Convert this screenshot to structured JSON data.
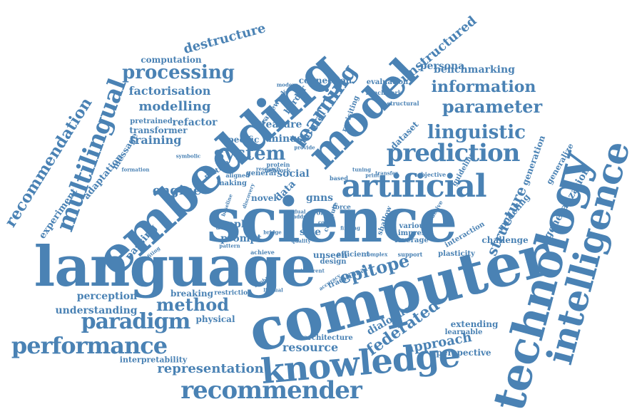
{
  "colors": {
    "word": "#4a82b4",
    "background": "#ffffff"
  },
  "words": [
    {
      "id": "science",
      "text": "science"
    },
    {
      "id": "computer",
      "text": "computer"
    },
    {
      "id": "language",
      "text": "language"
    },
    {
      "id": "embedding",
      "text": "embedding"
    },
    {
      "id": "technology",
      "text": "technology"
    },
    {
      "id": "intelligence",
      "text": "intelligence"
    },
    {
      "id": "model",
      "text": "model"
    },
    {
      "id": "knowledge",
      "text": "knowledge"
    },
    {
      "id": "artificial",
      "text": "artificial"
    },
    {
      "id": "prediction",
      "text": "prediction"
    },
    {
      "id": "multilingual",
      "text": "multilingual"
    },
    {
      "id": "recommender",
      "text": "recommender"
    },
    {
      "id": "performance",
      "text": "performance"
    },
    {
      "id": "paradigm",
      "text": "paradigm"
    },
    {
      "id": "processing",
      "text": "processing"
    },
    {
      "id": "linguistic",
      "text": "linguistic"
    },
    {
      "id": "parameter",
      "text": "parameter"
    },
    {
      "id": "system",
      "text": "system"
    },
    {
      "id": "learning",
      "text": "learning"
    },
    {
      "id": "information",
      "text": "information"
    },
    {
      "id": "method",
      "text": "method"
    },
    {
      "id": "epitope",
      "text": "epitope"
    },
    {
      "id": "federated",
      "text": "federated"
    },
    {
      "id": "representation",
      "text": "representation"
    },
    {
      "id": "approach",
      "text": "approach"
    },
    {
      "id": "structure",
      "text": "structure"
    },
    {
      "id": "recommendation",
      "text": "recommendation"
    },
    {
      "id": "engine",
      "text": "engine"
    },
    {
      "id": "modelling",
      "text": "modelling"
    },
    {
      "id": "factorisation",
      "text": "factorisation"
    },
    {
      "id": "unstructured",
      "text": "unstructured"
    },
    {
      "id": "destructure",
      "text": "destructure"
    },
    {
      "id": "understanding",
      "text": "understanding"
    },
    {
      "id": "perception",
      "text": "perception"
    },
    {
      "id": "resource",
      "text": "resource"
    },
    {
      "id": "training",
      "text": "training"
    },
    {
      "id": "persona",
      "text": "persona"
    },
    {
      "id": "benchmarking",
      "text": "benchmarking"
    },
    {
      "id": "experiment",
      "text": "experiment"
    },
    {
      "id": "adaptation",
      "text": "adaptation"
    },
    {
      "id": "feature",
      "text": "feature"
    },
    {
      "id": "minus",
      "text": "minus"
    },
    {
      "id": "natural",
      "text": "natural"
    },
    {
      "id": "refactor",
      "text": "refactor"
    },
    {
      "id": "transformer",
      "text": "transformer"
    },
    {
      "id": "gnns",
      "text": "gnns"
    },
    {
      "id": "graph",
      "text": "graph"
    },
    {
      "id": "prompt",
      "text": "prompt"
    },
    {
      "id": "size",
      "text": "size"
    },
    {
      "id": "passing",
      "text": "passing"
    },
    {
      "id": "dialogue",
      "text": "dialogue"
    },
    {
      "id": "extending",
      "text": "extending"
    },
    {
      "id": "learnable",
      "text": "learnable"
    },
    {
      "id": "perspective",
      "text": "perspective"
    },
    {
      "id": "interpretability",
      "text": "interpretability"
    },
    {
      "id": "architecture",
      "text": "architecture"
    },
    {
      "id": "physical",
      "text": "physical"
    },
    {
      "id": "breaking",
      "text": "breaking"
    },
    {
      "id": "challenge",
      "text": "challenge"
    },
    {
      "id": "modeling",
      "text": "modeling"
    },
    {
      "id": "generalization",
      "text": "generalization"
    },
    {
      "id": "generalize",
      "text": "generalize"
    },
    {
      "id": "generation",
      "text": "generation"
    },
    {
      "id": "guideline",
      "text": "guideline"
    },
    {
      "id": "objective",
      "text": "objective"
    },
    {
      "id": "shallow",
      "text": "shallow"
    },
    {
      "id": "various",
      "text": "various"
    },
    {
      "id": "impress",
      "text": "impress"
    },
    {
      "id": "leverage",
      "text": "leverage"
    },
    {
      "id": "interaction",
      "text": "interaction"
    },
    {
      "id": "plasticity",
      "text": "plasticity"
    },
    {
      "id": "support",
      "text": "support"
    },
    {
      "id": "unseen",
      "text": "unseen"
    },
    {
      "id": "efficient",
      "text": "efficient"
    },
    {
      "id": "design",
      "text": "design"
    },
    {
      "id": "social",
      "text": "social"
    },
    {
      "id": "data",
      "text": "data"
    },
    {
      "id": "novel",
      "text": "novel"
    },
    {
      "id": "general",
      "text": "general"
    },
    {
      "id": "aligned",
      "text": "aligned"
    },
    {
      "id": "mutual",
      "text": "mutual"
    },
    {
      "id": "making",
      "text": "making"
    },
    {
      "id": "specific",
      "text": "specific"
    },
    {
      "id": "connection",
      "text": "connection"
    },
    {
      "id": "evaluation",
      "text": "evaluation"
    },
    {
      "id": "benchmark",
      "text": "benchmark"
    },
    {
      "id": "structural",
      "text": "structural"
    },
    {
      "id": "dataset",
      "text": "dataset"
    },
    {
      "id": "revisiting",
      "text": "revisiting"
    },
    {
      "id": "border",
      "text": "border"
    },
    {
      "id": "framework",
      "text": "framework"
    },
    {
      "id": "computation",
      "text": "computation"
    },
    {
      "id": "pretrained",
      "text": "pretrained"
    },
    {
      "id": "message",
      "text": "message"
    },
    {
      "id": "formation",
      "text": "formation"
    },
    {
      "id": "symbolic",
      "text": "symbolic"
    },
    {
      "id": "restriction",
      "text": "restriction"
    },
    {
      "id": "traditional",
      "text": "traditional"
    },
    {
      "id": "complex",
      "text": "complex"
    },
    {
      "id": "achieve",
      "text": "achieve"
    },
    {
      "id": "accuracy",
      "text": "accuracy"
    },
    {
      "id": "inherent",
      "text": "inherent"
    },
    {
      "id": "compute",
      "text": "compute"
    },
    {
      "id": "tuning",
      "text": "tuning"
    },
    {
      "id": "transfer",
      "text": "transfer"
    },
    {
      "id": "based",
      "text": "based"
    },
    {
      "id": "protein",
      "text": "protein"
    },
    {
      "id": "network",
      "text": "network"
    },
    {
      "id": "research",
      "text": "research"
    },
    {
      "id": "force",
      "text": "force"
    },
    {
      "id": "inductive",
      "text": "inductive"
    },
    {
      "id": "benefiting",
      "text": "benefiting"
    },
    {
      "id": "pattern",
      "text": "pattern"
    },
    {
      "id": "discovery",
      "text": "discovery"
    },
    {
      "id": "baseline",
      "text": "baseline"
    },
    {
      "id": "cost",
      "text": "cost"
    },
    {
      "id": "work",
      "text": "work"
    },
    {
      "id": "dual",
      "text": "dual"
    },
    {
      "id": "adds",
      "text": "adds"
    },
    {
      "id": "finding",
      "text": "finding"
    },
    {
      "id": "print",
      "text": "print"
    },
    {
      "id": "modern",
      "text": "modern"
    },
    {
      "id": "provide",
      "text": "provide"
    },
    {
      "id": "bridge",
      "text": "bridge"
    },
    {
      "id": "quality",
      "text": "quality"
    },
    {
      "id": "problem",
      "text": "problem"
    },
    {
      "id": "lingual",
      "text": "lingual"
    }
  ]
}
